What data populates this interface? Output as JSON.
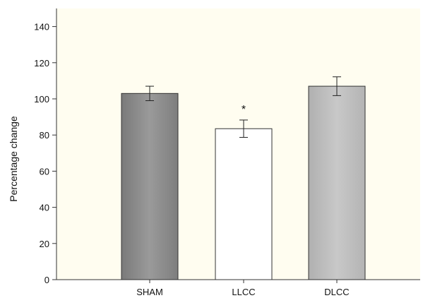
{
  "chart_data": {
    "type": "bar",
    "categories": [
      "SHAM",
      "LLCC",
      "DLCC"
    ],
    "values": [
      103,
      83.5,
      107
    ],
    "errors": [
      4,
      4.8,
      5.2
    ],
    "bar_colors": [
      "#8c8c8c",
      "#ffffff",
      "#bdbdbd"
    ],
    "significance": [
      "",
      "*",
      ""
    ],
    "ylabel": "Percentage change",
    "xlabel": "",
    "ylim": [
      0,
      150
    ],
    "yticks": [
      0,
      20,
      40,
      60,
      80,
      100,
      120,
      140
    ],
    "plot_background": "#fffdf0",
    "grid": false
  }
}
